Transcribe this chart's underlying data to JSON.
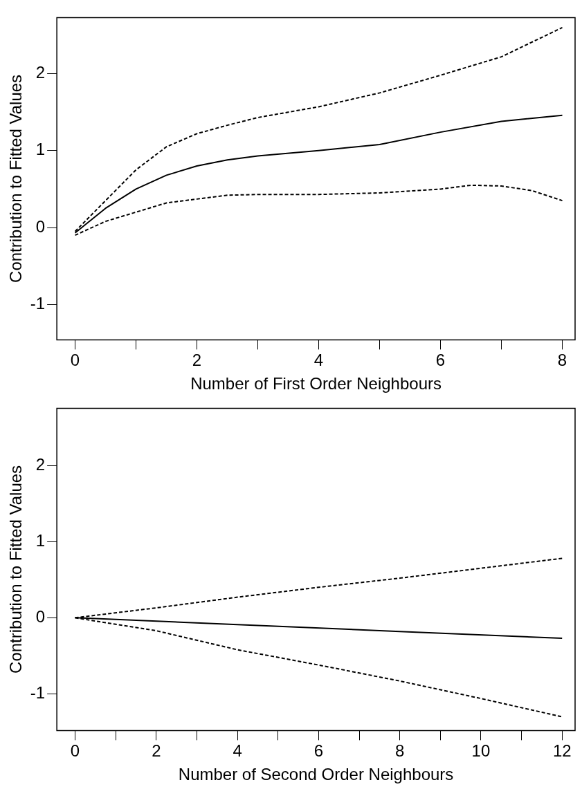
{
  "chart_data": [
    {
      "type": "line",
      "xlabel": "Number of First Order Neighbours",
      "ylabel": "Contribution to Fitted Values",
      "xlim": [
        -0.3,
        8.21
      ],
      "ylim": [
        -1.46,
        2.73
      ],
      "xticks": [
        0,
        {
          "value": 1,
          "label": null
        },
        2,
        {
          "value": 3,
          "label": null
        },
        4,
        {
          "value": 5,
          "label": null
        },
        6,
        {
          "value": 7,
          "label": null
        },
        8
      ],
      "yticks": [
        -1,
        0,
        1,
        2
      ],
      "grid": false,
      "legend": false,
      "series": [
        {
          "color": "#000000",
          "line_style": "solid",
          "x": [
            0,
            0.5,
            1,
            1.5,
            2,
            2.5,
            3,
            4,
            5,
            6,
            7,
            8
          ],
          "values": [
            -0.07,
            0.25,
            0.5,
            0.68,
            0.8,
            0.88,
            0.93,
            1.0,
            1.08,
            1.24,
            1.38,
            1.46
          ]
        },
        {
          "color": "#000000",
          "line_style": "dashed",
          "x": [
            0,
            0.5,
            1,
            1.5,
            2,
            2.5,
            3,
            4,
            5,
            6,
            7,
            8
          ],
          "values": [
            -0.05,
            0.35,
            0.75,
            1.05,
            1.22,
            1.33,
            1.43,
            1.57,
            1.75,
            1.98,
            2.22,
            2.6
          ]
        },
        {
          "color": "#000000",
          "line_style": "dashed",
          "x": [
            0,
            0.5,
            1,
            1.5,
            2,
            2.5,
            3,
            4,
            5,
            6,
            6.5,
            7,
            7.5,
            8
          ],
          "values": [
            -0.1,
            0.08,
            0.2,
            0.32,
            0.37,
            0.42,
            0.43,
            0.43,
            0.45,
            0.5,
            0.55,
            0.54,
            0.48,
            0.35
          ]
        }
      ]
    },
    {
      "type": "line",
      "xlabel": "Number of Second Order Neighbours",
      "ylabel": "Contribution to Fitted Values",
      "xlim": [
        -0.45,
        12.32
      ],
      "ylim": [
        -1.48,
        2.75
      ],
      "xticks": [
        0,
        {
          "value": 1,
          "label": null
        },
        2,
        {
          "value": 3,
          "label": null
        },
        4,
        {
          "value": 5,
          "label": null
        },
        6,
        {
          "value": 7,
          "label": null
        },
        8,
        {
          "value": 9,
          "label": null
        },
        10,
        {
          "value": 11,
          "label": null
        },
        12
      ],
      "yticks": [
        -1,
        0,
        1,
        2
      ],
      "grid": false,
      "legend": false,
      "series": [
        {
          "color": "#000000",
          "line_style": "solid",
          "x": [
            0,
            4,
            8,
            12
          ],
          "values": [
            0,
            -0.09,
            -0.18,
            -0.27
          ]
        },
        {
          "color": "#000000",
          "line_style": "dashed",
          "x": [
            0,
            2,
            4,
            6,
            8,
            10,
            12
          ],
          "values": [
            0,
            0.13,
            0.27,
            0.4,
            0.52,
            0.65,
            0.78
          ]
        },
        {
          "color": "#000000",
          "line_style": "dashed",
          "x": [
            0,
            2,
            4,
            6,
            8,
            10,
            12
          ],
          "values": [
            0,
            -0.17,
            -0.42,
            -0.62,
            -0.83,
            -1.06,
            -1.3
          ]
        }
      ]
    }
  ]
}
